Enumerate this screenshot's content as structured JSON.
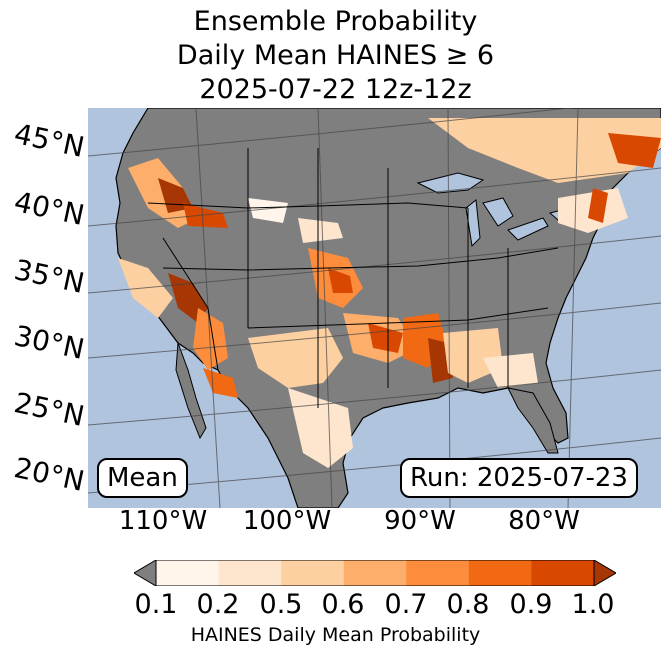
{
  "title": {
    "line1": "Ensemble Probability",
    "line2": "Daily Mean HAINES ≥ 6",
    "line3": "2025-07-22 12z-12z"
  },
  "map": {
    "ocean_color": "#b0c4de",
    "land_color": "#7f7f7f",
    "lat_labels": [
      "45°N",
      "40°N",
      "35°N",
      "30°N",
      "25°N",
      "20°N"
    ],
    "lon_labels": [
      "110°W",
      "100°W",
      "90°W",
      "80°W"
    ],
    "stat_label": "Mean",
    "run_label": "Run: 2025-07-23"
  },
  "colorbar": {
    "ticks": [
      "0.1",
      "0.2",
      "0.5",
      "0.6",
      "0.7",
      "0.8",
      "0.9",
      "1.0"
    ],
    "colors": [
      "#fff5eb",
      "#fee6ce",
      "#fdd0a2",
      "#fdae6b",
      "#fd8d3c",
      "#f16913",
      "#d94801",
      "#a63603"
    ],
    "under_color": "#7f7f7f",
    "label": "HAINES Daily Mean Probability"
  }
}
